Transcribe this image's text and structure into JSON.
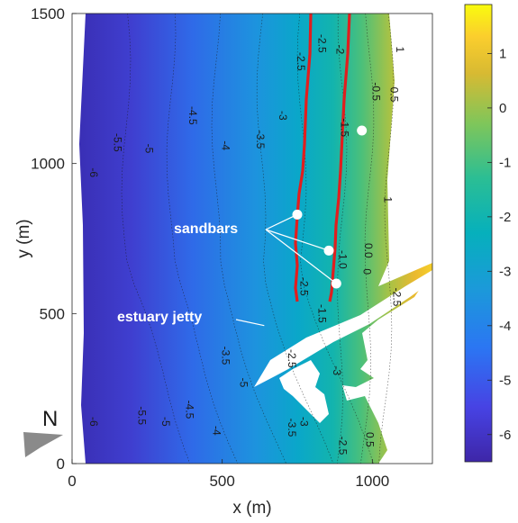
{
  "chart_data": {
    "type": "heatmap",
    "xlabel": "x (m)",
    "ylabel": "y (m)",
    "xlim": [
      0,
      1200
    ],
    "ylim": [
      0,
      1500
    ],
    "xticks": [
      "0",
      "500",
      "1000"
    ],
    "yticks": [
      "0",
      "500",
      "1000",
      "1500"
    ],
    "colorbar": {
      "range": [
        -6.5,
        1.9
      ],
      "ticks": [
        "1",
        "0",
        "-1",
        "-2",
        "-3",
        "-4",
        "-5",
        "-6"
      ],
      "colormap": "parula"
    },
    "contour_labels": [
      {
        "text": "-2.5",
        "x": 820,
        "y": 1400
      },
      {
        "text": "-2",
        "x": 880,
        "y": 1380
      },
      {
        "text": "-2.5",
        "x": 750,
        "y": 1340
      },
      {
        "text": "-0.5",
        "x": 1000,
        "y": 1240
      },
      {
        "text": "0.5",
        "x": 1060,
        "y": 1230
      },
      {
        "text": "1",
        "x": 1080,
        "y": 1380
      },
      {
        "text": "-4.5",
        "x": 390,
        "y": 1160
      },
      {
        "text": "-3",
        "x": 690,
        "y": 1160
      },
      {
        "text": "-1.5",
        "x": 895,
        "y": 1120
      },
      {
        "text": "-5.5",
        "x": 140,
        "y": 1070
      },
      {
        "text": "-5",
        "x": 245,
        "y": 1050
      },
      {
        "text": "-4",
        "x": 500,
        "y": 1060
      },
      {
        "text": "-3.5",
        "x": 615,
        "y": 1080
      },
      {
        "text": "-6",
        "x": 60,
        "y": 970
      },
      {
        "text": "1",
        "x": 1040,
        "y": 880
      },
      {
        "text": "-1.0",
        "x": 890,
        "y": 680
      },
      {
        "text": "0.0",
        "x": 975,
        "y": 710
      },
      {
        "text": "0",
        "x": 970,
        "y": 640
      },
      {
        "text": "-2.5",
        "x": 760,
        "y": 590
      },
      {
        "text": "-2.5",
        "x": 1070,
        "y": 555
      },
      {
        "text": "-1.5",
        "x": 820,
        "y": 500
      },
      {
        "text": "-3.5",
        "x": 500,
        "y": 360
      },
      {
        "text": "-2.5",
        "x": 720,
        "y": 350
      },
      {
        "text": "-3",
        "x": 870,
        "y": 310
      },
      {
        "text": "-5",
        "x": 560,
        "y": 270
      },
      {
        "text": "-5.5",
        "x": 220,
        "y": 160
      },
      {
        "text": "-5",
        "x": 300,
        "y": 140
      },
      {
        "text": "-4.5",
        "x": 380,
        "y": 180
      },
      {
        "text": "-6",
        "x": 60,
        "y": 140
      },
      {
        "text": "-4",
        "x": 470,
        "y": 110
      },
      {
        "text": "-3.5",
        "x": 720,
        "y": 120
      },
      {
        "text": "-3",
        "x": 760,
        "y": 140
      },
      {
        "text": "-2.5",
        "x": 890,
        "y": 60
      },
      {
        "text": "0.5",
        "x": 980,
        "y": 80
      }
    ],
    "annotations": [
      {
        "text": "sandbars",
        "points": [
          {
            "x": 750,
            "y": 830
          },
          {
            "x": 855,
            "y": 710
          },
          {
            "x": 880,
            "y": 600
          }
        ]
      },
      {
        "text": "estuary jetty",
        "x": 640,
        "y": 460
      }
    ],
    "markers": [
      {
        "x": 750,
        "y": 830
      },
      {
        "x": 855,
        "y": 710
      },
      {
        "x": 880,
        "y": 600
      },
      {
        "x": 965,
        "y": 1110
      }
    ],
    "north_arrow": "N",
    "colors": {
      "sandbar_line": "#e01e1e",
      "colormap_low": "#3e26a8",
      "colormap_mid": "#1fb4a5",
      "colormap_high": "#f9fb0e"
    }
  }
}
